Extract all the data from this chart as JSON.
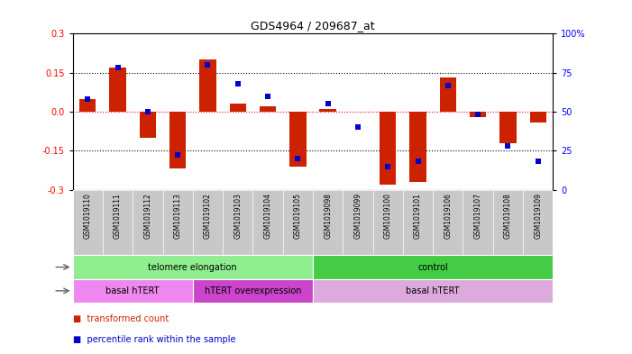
{
  "title": "GDS4964 / 209687_at",
  "samples": [
    "GSM1019110",
    "GSM1019111",
    "GSM1019112",
    "GSM1019113",
    "GSM1019102",
    "GSM1019103",
    "GSM1019104",
    "GSM1019105",
    "GSM1019098",
    "GSM1019099",
    "GSM1019100",
    "GSM1019101",
    "GSM1019106",
    "GSM1019107",
    "GSM1019108",
    "GSM1019109"
  ],
  "red_values": [
    0.05,
    0.17,
    -0.1,
    -0.22,
    0.2,
    0.03,
    0.02,
    -0.21,
    0.01,
    0.0,
    -0.28,
    -0.27,
    0.13,
    -0.02,
    -0.12,
    -0.04
  ],
  "blue_values_pct": [
    58,
    78,
    50,
    22,
    80,
    68,
    60,
    20,
    55,
    40,
    15,
    18,
    67,
    48,
    28,
    18
  ],
  "ylim": [
    -0.3,
    0.3
  ],
  "yticks_left": [
    -0.3,
    -0.15,
    0.0,
    0.15,
    0.3
  ],
  "yticks_right": [
    0,
    25,
    50,
    75,
    100
  ],
  "bar_color": "#cc2200",
  "dot_color": "#0000cc",
  "background_color": "#ffffff",
  "sample_label_bg": "#c8c8c8",
  "protocol_groups": [
    {
      "label": "telomere elongation",
      "start": 0,
      "end": 8,
      "color": "#90ee90"
    },
    {
      "label": "control",
      "start": 8,
      "end": 16,
      "color": "#44cc44"
    }
  ],
  "genotype_groups": [
    {
      "label": "basal hTERT",
      "start": 0,
      "end": 4,
      "color": "#ee88ee"
    },
    {
      "label": "hTERT overexpression",
      "start": 4,
      "end": 8,
      "color": "#cc44cc"
    },
    {
      "label": "basal hTERT",
      "start": 8,
      "end": 16,
      "color": "#ddaadd"
    }
  ],
  "legend_items": [
    {
      "label": "transformed count",
      "color": "#cc2200"
    },
    {
      "label": "percentile rank within the sample",
      "color": "#0000cc"
    }
  ]
}
